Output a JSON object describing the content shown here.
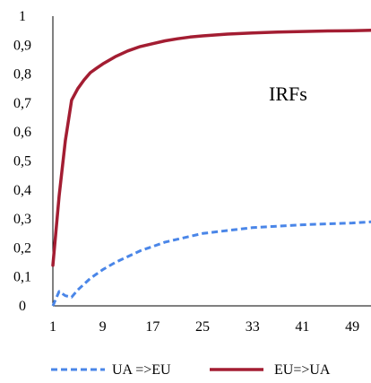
{
  "chart_data": {
    "type": "line",
    "title": "",
    "xlabel": "",
    "ylabel": "",
    "annotation": "IRFs",
    "x_tick_labels": [
      "1",
      "9",
      "17",
      "25",
      "33",
      "41",
      "49"
    ],
    "y_tick_labels": [
      "0",
      "0,1",
      "0,2",
      "0,3",
      "0,4",
      "0,5",
      "0,6",
      "0,7",
      "0,8",
      "0,9",
      "1"
    ],
    "xlim": [
      1,
      52
    ],
    "ylim": [
      0,
      1
    ],
    "grid": false,
    "legend_position": "bottom",
    "series": [
      {
        "name": "UA =>EU",
        "color": "#4a86e8",
        "style": "dashed",
        "x": [
          1,
          2,
          3,
          4,
          5,
          6,
          7,
          8,
          9,
          11,
          13,
          15,
          17,
          19,
          21,
          23,
          25,
          29,
          33,
          37,
          41,
          45,
          49,
          52
        ],
        "y": [
          0.0,
          0.05,
          0.035,
          0.03,
          0.055,
          0.075,
          0.095,
          0.11,
          0.125,
          0.15,
          0.17,
          0.19,
          0.205,
          0.22,
          0.23,
          0.24,
          0.25,
          0.26,
          0.27,
          0.275,
          0.28,
          0.283,
          0.286,
          0.29
        ]
      },
      {
        "name": "EU=>UA",
        "color": "#a31d32",
        "style": "solid",
        "x": [
          1,
          2,
          3,
          4,
          5,
          6,
          7,
          8,
          9,
          11,
          13,
          15,
          17,
          19,
          21,
          23,
          25,
          29,
          33,
          37,
          41,
          45,
          49,
          52
        ],
        "y": [
          0.14,
          0.38,
          0.57,
          0.71,
          0.75,
          0.78,
          0.805,
          0.82,
          0.835,
          0.86,
          0.88,
          0.895,
          0.905,
          0.915,
          0.922,
          0.928,
          0.932,
          0.938,
          0.942,
          0.945,
          0.947,
          0.949,
          0.95,
          0.951
        ]
      }
    ]
  }
}
